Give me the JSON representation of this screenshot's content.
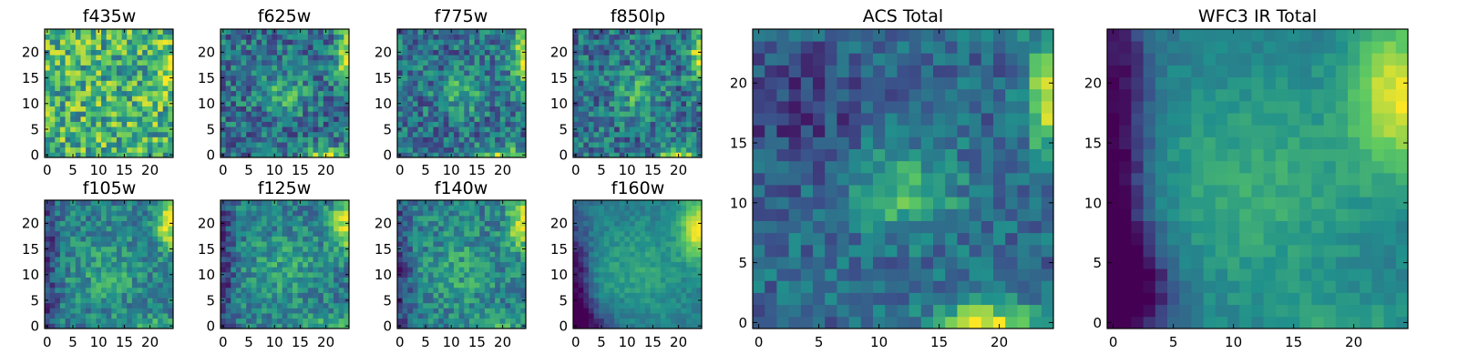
{
  "figure": {
    "background": "#ffffff",
    "colormap": "viridis",
    "colormap_stops": [
      "#440154",
      "#3b528b",
      "#21918c",
      "#5ec962",
      "#fde725"
    ]
  },
  "chart_data": [
    {
      "type": "heatmap",
      "title": "f435w",
      "x_range": [
        -0.5,
        24.5
      ],
      "y_range": [
        -0.5,
        24.5
      ],
      "xticks": [
        "0",
        "5",
        "10",
        "15",
        "20"
      ],
      "yticks": [
        "0",
        "5",
        "10",
        "15",
        "20"
      ],
      "grid": false,
      "pattern": "noise",
      "seed": 11
    },
    {
      "type": "heatmap",
      "title": "f625w",
      "x_range": [
        -0.5,
        24.5
      ],
      "y_range": [
        -0.5,
        24.5
      ],
      "xticks": [
        "0",
        "5",
        "10",
        "15",
        "20"
      ],
      "yticks": [
        "0",
        "5",
        "10",
        "15",
        "20"
      ],
      "grid": false,
      "pattern": "acs_band",
      "seed": 22
    },
    {
      "type": "heatmap",
      "title": "f775w",
      "x_range": [
        -0.5,
        24.5
      ],
      "y_range": [
        -0.5,
        24.5
      ],
      "xticks": [
        "0",
        "5",
        "10",
        "15",
        "20"
      ],
      "yticks": [
        "0",
        "5",
        "10",
        "15",
        "20"
      ],
      "grid": false,
      "pattern": "acs_band",
      "seed": 33
    },
    {
      "type": "heatmap",
      "title": "f850lp",
      "x_range": [
        -0.5,
        24.5
      ],
      "y_range": [
        -0.5,
        24.5
      ],
      "xticks": [
        "0",
        "5",
        "10",
        "15",
        "20"
      ],
      "yticks": [
        "0",
        "5",
        "10",
        "15",
        "20"
      ],
      "grid": false,
      "pattern": "acs_band",
      "seed": 44
    },
    {
      "type": "heatmap",
      "title": "f105w",
      "x_range": [
        -0.5,
        24.5
      ],
      "y_range": [
        -0.5,
        24.5
      ],
      "xticks": [
        "0",
        "5",
        "10",
        "15",
        "20"
      ],
      "yticks": [
        "0",
        "5",
        "10",
        "15",
        "20"
      ],
      "grid": false,
      "pattern": "ir_band",
      "seed": 55
    },
    {
      "type": "heatmap",
      "title": "f125w",
      "x_range": [
        -0.5,
        24.5
      ],
      "y_range": [
        -0.5,
        24.5
      ],
      "xticks": [
        "0",
        "5",
        "10",
        "15",
        "20"
      ],
      "yticks": [
        "0",
        "5",
        "10",
        "15",
        "20"
      ],
      "grid": false,
      "pattern": "ir_band",
      "seed": 66
    },
    {
      "type": "heatmap",
      "title": "f140w",
      "x_range": [
        -0.5,
        24.5
      ],
      "y_range": [
        -0.5,
        24.5
      ],
      "xticks": [
        "0",
        "5",
        "10",
        "15",
        "20"
      ],
      "yticks": [
        "0",
        "5",
        "10",
        "15",
        "20"
      ],
      "grid": false,
      "pattern": "ir_band",
      "seed": 77
    },
    {
      "type": "heatmap",
      "title": "f160w",
      "x_range": [
        -0.5,
        24.5
      ],
      "y_range": [
        -0.5,
        24.5
      ],
      "xticks": [
        "0",
        "5",
        "10",
        "15",
        "20"
      ],
      "yticks": [
        "0",
        "5",
        "10",
        "15",
        "20"
      ],
      "grid": false,
      "pattern": "ir_smooth",
      "seed": 88
    },
    {
      "type": "heatmap",
      "title": "ACS Total",
      "x_range": [
        -0.5,
        24.5
      ],
      "y_range": [
        -0.5,
        24.5
      ],
      "xticks": [
        "0",
        "5",
        "10",
        "15",
        "20"
      ],
      "yticks": [
        "0",
        "5",
        "10",
        "15",
        "20"
      ],
      "grid": false,
      "pattern": "acs_total",
      "seed": 99
    },
    {
      "type": "heatmap",
      "title": "WFC3 IR Total",
      "x_range": [
        -0.5,
        24.5
      ],
      "y_range": [
        -0.5,
        24.5
      ],
      "xticks": [
        "0",
        "5",
        "10",
        "15",
        "20"
      ],
      "yticks": [
        "0",
        "5",
        "10",
        "15",
        "20"
      ],
      "grid": false,
      "pattern": "ir_total",
      "seed": 111
    }
  ]
}
